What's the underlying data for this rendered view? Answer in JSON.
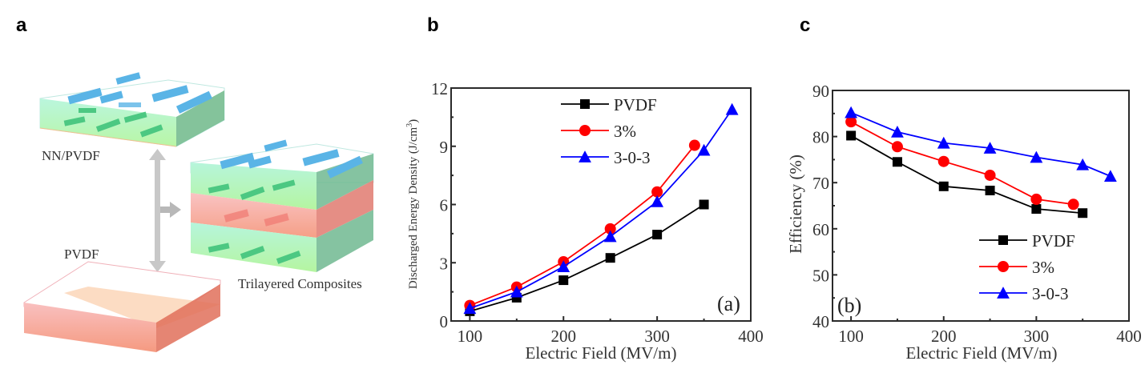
{
  "panels": {
    "a": {
      "letter": "a"
    },
    "b": {
      "letter": "b"
    },
    "c": {
      "letter": "c"
    }
  },
  "schematic": {
    "labels": {
      "top_layer": "NN/PVDF",
      "bottom_layer": "PVDF",
      "composite": "Trilayered Composites"
    },
    "colors": {
      "polymer_green": "#a8f0a0",
      "polymer_cyan": "#a8f0d8",
      "pvdf_red": "#f08870",
      "particle_blue": "#5ab4e6",
      "particle_green": "#4cc882",
      "arrow_gray": "#c8c8c8"
    }
  },
  "chart_data": [
    {
      "type": "line",
      "title": "",
      "inset_label": "(a)",
      "xlabel": "Electric Field (MV/m)",
      "ylabel": "Discharged Energy Density (J/cm3)",
      "ylabel_main": "Discharged Energy Density (J/cm",
      "ylabel_sup": "3",
      "ylabel_close": ")",
      "xlim": [
        80,
        400
      ],
      "ylim": [
        0,
        12
      ],
      "xticks": [
        100,
        200,
        300,
        400
      ],
      "xtick_labels": [
        "100",
        "200",
        "300",
        "400"
      ],
      "xminor": [
        150,
        250,
        350
      ],
      "yticks": [
        0,
        3,
        6,
        9,
        12
      ],
      "ytick_labels": [
        "0",
        "3",
        "6",
        "9",
        "12"
      ],
      "yminor": [
        1.5,
        4.5,
        7.5,
        10.5
      ],
      "grid": false,
      "legend_position": "top-center",
      "series": [
        {
          "name": "PVDF",
          "color": "#000000",
          "marker": "square",
          "x": [
            100,
            150,
            200,
            250,
            300,
            350
          ],
          "y": [
            0.5,
            1.2,
            2.1,
            3.25,
            4.45,
            6.0
          ]
        },
        {
          "name": "3%",
          "color": "#ff0000",
          "marker": "circle",
          "x": [
            100,
            150,
            200,
            250,
            300,
            340
          ],
          "y": [
            0.8,
            1.75,
            3.05,
            4.75,
            6.65,
            9.05
          ]
        },
        {
          "name": "3-0-3",
          "color": "#0000ff",
          "marker": "triangle",
          "x": [
            100,
            150,
            200,
            250,
            300,
            350,
            380
          ],
          "y": [
            0.65,
            1.5,
            2.8,
            4.35,
            6.15,
            8.8,
            10.9
          ]
        }
      ]
    },
    {
      "type": "line",
      "title": "",
      "inset_label": "(b)",
      "xlabel": "Electric Field (MV/m)",
      "ylabel": "Efficiency (%)",
      "xlim": [
        80,
        400
      ],
      "ylim": [
        40,
        90
      ],
      "xticks": [
        100,
        200,
        300,
        400
      ],
      "xtick_labels": [
        "100",
        "200",
        "300",
        "400"
      ],
      "xminor": [
        150,
        250,
        350
      ],
      "yticks": [
        40,
        50,
        60,
        70,
        80,
        90
      ],
      "ytick_labels": [
        "40",
        "50",
        "60",
        "70",
        "80",
        "90"
      ],
      "yminor": [
        45,
        55,
        65,
        75,
        85
      ],
      "grid": false,
      "legend_position": "bottom-right",
      "series": [
        {
          "name": "PVDF",
          "color": "#000000",
          "marker": "square",
          "x": [
            100,
            150,
            200,
            250,
            300,
            350
          ],
          "y": [
            80.2,
            74.5,
            69.2,
            68.3,
            64.3,
            63.4
          ]
        },
        {
          "name": "3%",
          "color": "#ff0000",
          "marker": "circle",
          "x": [
            100,
            150,
            200,
            250,
            300,
            340
          ],
          "y": [
            83.2,
            77.8,
            74.6,
            71.6,
            66.4,
            65.3
          ]
        },
        {
          "name": "3-0-3",
          "color": "#0000ff",
          "marker": "triangle",
          "x": [
            100,
            150,
            200,
            250,
            300,
            350,
            380
          ],
          "y": [
            85.2,
            81.0,
            78.6,
            77.5,
            75.5,
            73.9,
            71.4
          ]
        }
      ]
    }
  ]
}
